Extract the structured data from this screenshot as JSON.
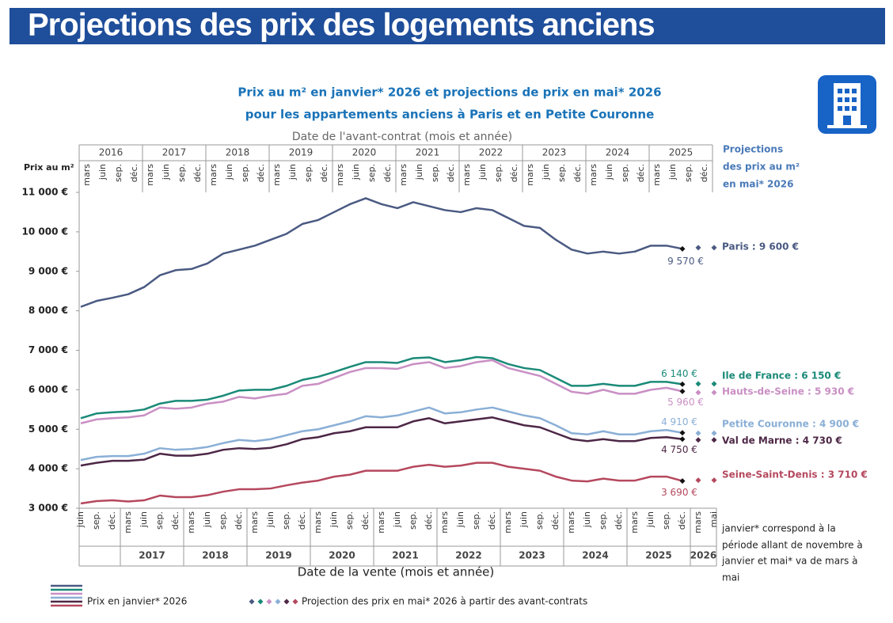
{
  "banner_title": "Projections des prix des logements anciens",
  "chart_data": {
    "type": "line",
    "title": [
      "Prix au m² en janvier* 2026 et projections de prix en mai* 2026",
      "pour les appartements anciens à Paris et en Petite Couronne"
    ],
    "top_axis": {
      "title": "Date de l'avant-contrat (mois et année)",
      "years": [
        "2016",
        "2017",
        "2018",
        "2019",
        "2020",
        "2021",
        "2022",
        "2023",
        "2024",
        "2025"
      ],
      "months": [
        "mars",
        "juin",
        "sep.",
        "déc."
      ]
    },
    "y_label": "Prix au m²",
    "ylim": [
      3000,
      11000
    ],
    "yticks": [
      {
        "value": 3000,
        "label": "3 000 €"
      },
      {
        "value": 4000,
        "label": "4 000 €"
      },
      {
        "value": 5000,
        "label": "5 000 €"
      },
      {
        "value": 6000,
        "label": "6 000 €"
      },
      {
        "value": 7000,
        "label": "7 000 €"
      },
      {
        "value": 8000,
        "label": "8 000 €"
      },
      {
        "value": 9000,
        "label": "9 000 €"
      },
      {
        "value": 10000,
        "label": "10 000 €"
      },
      {
        "value": 11000,
        "label": "11 000 €"
      }
    ],
    "categories": [
      "juin",
      "sep.",
      "déc.",
      "mars",
      "juin",
      "sep.",
      "déc.",
      "mars",
      "juin",
      "sep.",
      "déc.",
      "mars",
      "juin",
      "sep.",
      "déc.",
      "mars",
      "juin",
      "sep.",
      "déc.",
      "mars",
      "juin",
      "sep.",
      "déc.",
      "mars",
      "juin",
      "sep.",
      "déc.",
      "mars",
      "juin",
      "sep.",
      "déc.",
      "mars",
      "juin",
      "sep.",
      "déc.",
      "mars",
      "juin",
      "sep.",
      "déc."
    ],
    "projection_categories": [
      "mars",
      "mai"
    ],
    "x_years": [
      "2017",
      "2018",
      "2019",
      "2020",
      "2021",
      "2022",
      "2023",
      "2024",
      "2025",
      "2026"
    ],
    "xlabel": "Date de la vente (mois et année)",
    "projection_title": [
      "Projections",
      "des prix au m²",
      "en mai* 2026"
    ],
    "series": [
      {
        "label": "Paris : 9 600 €",
        "color": "#4a5a82",
        "end_label": "9 570 €",
        "projection": [
          9600,
          9600
        ],
        "values": [
          8100,
          8250,
          8330,
          8420,
          8600,
          8900,
          9030,
          9060,
          9200,
          9450,
          9550,
          9650,
          9800,
          9950,
          10200,
          10300,
          10500,
          10700,
          10850,
          10700,
          10600,
          10750,
          10650,
          10550,
          10500,
          10600,
          10550,
          10350,
          10150,
          10100,
          9800,
          9550,
          9450,
          9500,
          9450,
          9500,
          9650,
          9650,
          9570
        ]
      },
      {
        "label": "Ile de France : 6 150 €",
        "color": "#1b8a78",
        "end_label": "6 140 €",
        "projection": [
          6150,
          6150
        ],
        "values": [
          5280,
          5400,
          5430,
          5450,
          5500,
          5650,
          5720,
          5720,
          5750,
          5850,
          5980,
          6000,
          6000,
          6100,
          6250,
          6330,
          6450,
          6580,
          6700,
          6700,
          6680,
          6800,
          6820,
          6700,
          6750,
          6830,
          6800,
          6650,
          6550,
          6500,
          6300,
          6100,
          6100,
          6150,
          6100,
          6100,
          6200,
          6200,
          6140
        ]
      },
      {
        "label": "Hauts-de-Seine : 5 930 €",
        "color": "#c98fc4",
        "end_label": "5 960 €",
        "projection": [
          5930,
          5930
        ],
        "values": [
          5150,
          5250,
          5280,
          5300,
          5350,
          5550,
          5520,
          5550,
          5650,
          5700,
          5820,
          5780,
          5850,
          5900,
          6100,
          6150,
          6300,
          6450,
          6550,
          6550,
          6530,
          6650,
          6700,
          6550,
          6600,
          6700,
          6750,
          6550,
          6450,
          6350,
          6150,
          5950,
          5900,
          6000,
          5900,
          5900,
          6000,
          6050,
          5960
        ]
      },
      {
        "label": "Petite Couronne : 4 900 €",
        "color": "#8aafd6",
        "end_label": "4 910 €",
        "projection": [
          4900,
          4900
        ],
        "values": [
          4220,
          4300,
          4320,
          4320,
          4380,
          4520,
          4480,
          4500,
          4550,
          4650,
          4730,
          4700,
          4750,
          4850,
          4950,
          5000,
          5100,
          5200,
          5330,
          5300,
          5350,
          5450,
          5550,
          5400,
          5430,
          5500,
          5550,
          5450,
          5350,
          5280,
          5100,
          4900,
          4870,
          4950,
          4870,
          4870,
          4950,
          4980,
          4910
        ]
      },
      {
        "label": "Val de Marne : 4 730 €",
        "color": "#4d2746",
        "end_label": "4 750 €",
        "projection": [
          4730,
          4730
        ],
        "values": [
          4080,
          4150,
          4200,
          4200,
          4230,
          4380,
          4330,
          4330,
          4380,
          4480,
          4520,
          4500,
          4530,
          4620,
          4750,
          4800,
          4900,
          4950,
          5050,
          5050,
          5050,
          5200,
          5280,
          5150,
          5200,
          5250,
          5300,
          5200,
          5100,
          5050,
          4900,
          4750,
          4700,
          4750,
          4700,
          4700,
          4780,
          4800,
          4750
        ]
      },
      {
        "label": "Seine-Saint-Denis : 3 710 €",
        "color": "#b5485e",
        "end_label": "3 690 €",
        "projection": [
          3710,
          3710
        ],
        "values": [
          3120,
          3180,
          3200,
          3170,
          3200,
          3320,
          3280,
          3280,
          3330,
          3420,
          3480,
          3480,
          3500,
          3580,
          3650,
          3700,
          3800,
          3850,
          3950,
          3950,
          3950,
          4050,
          4100,
          4050,
          4080,
          4150,
          4150,
          4050,
          4000,
          3950,
          3800,
          3700,
          3680,
          3750,
          3700,
          3700,
          3800,
          3800,
          3690
        ]
      }
    ],
    "legend": {
      "actual": "Prix en janvier* 2026",
      "projection": "Projection des prix en mai* 2026 à partir des avant-contrats"
    },
    "note": [
      "janvier* correspond à la",
      "période allant de novembre à",
      "janvier et mai* va de mars à",
      "mai"
    ]
  }
}
